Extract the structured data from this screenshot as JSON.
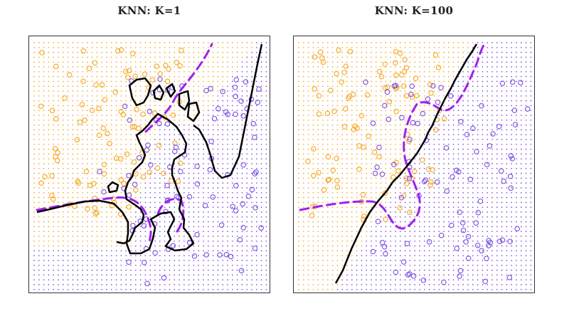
{
  "chart_data": [
    {
      "type": "scatter",
      "title": "KNN: K=1",
      "xlabel": "",
      "ylabel": "",
      "xlim": [
        0,
        1
      ],
      "ylim": [
        0,
        1
      ],
      "grid": false,
      "background_grid": "dots colored by predicted class",
      "classes": [
        {
          "color": "#f5a623",
          "marker": "circle-open"
        },
        {
          "color": "#7b4fe0",
          "marker": "circle-open"
        }
      ],
      "lines": [
        {
          "role": "knn-decision-boundary",
          "color": "#000000",
          "style": "solid"
        },
        {
          "role": "bayes-decision-boundary",
          "color": "#a020f0",
          "style": "dashed"
        }
      ]
    },
    {
      "type": "scatter",
      "title": "KNN: K=100",
      "xlabel": "",
      "ylabel": "",
      "xlim": [
        0,
        1
      ],
      "ylim": [
        0,
        1
      ],
      "grid": false,
      "background_grid": "dots colored by predicted class",
      "classes": [
        {
          "color": "#f5a623",
          "marker": "circle-open"
        },
        {
          "color": "#7b4fe0",
          "marker": "circle-open"
        }
      ],
      "lines": [
        {
          "role": "knn-decision-boundary",
          "color": "#000000",
          "style": "solid"
        },
        {
          "role": "bayes-decision-boundary",
          "color": "#a020f0",
          "style": "dashed"
        }
      ]
    }
  ]
}
